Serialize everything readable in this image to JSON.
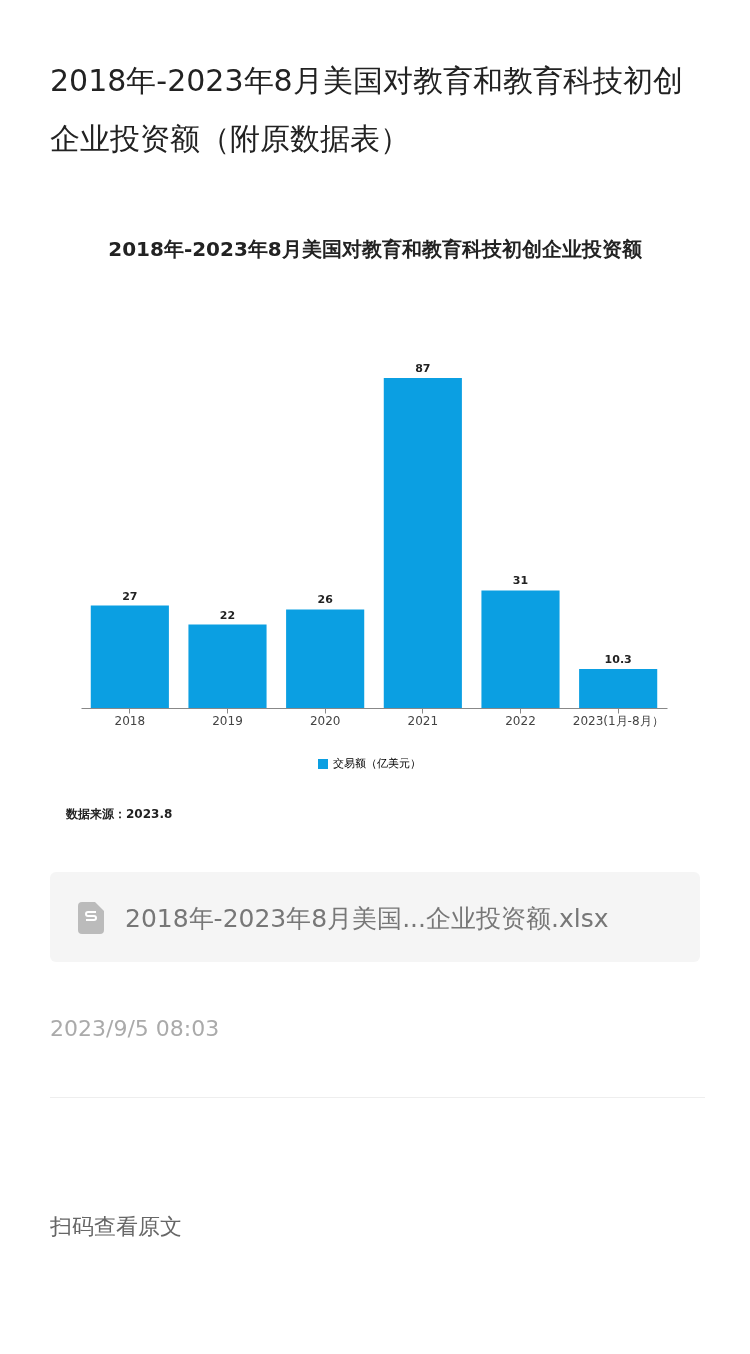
{
  "chart_data": {
    "type": "bar",
    "title": "2018年-2023年8月美国对教育和教育科技初创企业投资额（附原数据表）",
    "subtitle": "2018年-2023年8月美国对教育和教育科技初创企业投资额",
    "categories": [
      "2018",
      "2019",
      "2020",
      "2021",
      "2022",
      "2023(1月-8月）"
    ],
    "series": [
      {
        "name": "交易额（亿美元）",
        "color": "#0b9fe2",
        "values": [
          27,
          22,
          26,
          87,
          31,
          10.3
        ]
      }
    ],
    "data_labels": true,
    "legend": "bottom",
    "annotations": [
      "数据来源：2023.8",
      "2018年-2023年8月美国...企业投资额.xlsx",
      "2023/9/5 08:03",
      "扫码查看原文"
    ]
  }
}
